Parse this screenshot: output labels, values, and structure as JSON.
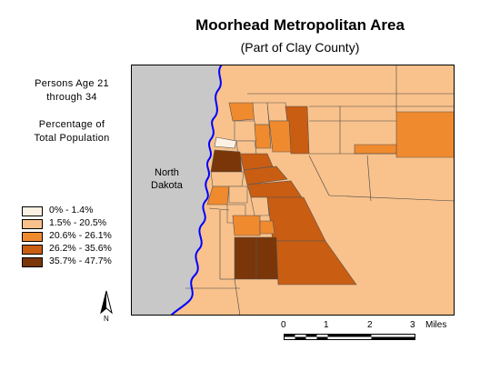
{
  "title": "Moorhead Metropolitan Area",
  "subtitle": "(Part of Clay County)",
  "variable_lines": [
    "Persons Age 21",
    "through 34"
  ],
  "measure_lines": [
    "Percentage of",
    "Total Population"
  ],
  "state_label_lines": [
    "North",
    "Dakota"
  ],
  "north_arrow_label": "N",
  "legend": [
    {
      "label": "0% - 1.4%",
      "color": "#fdf1e3"
    },
    {
      "label": "1.5% - 20.5%",
      "color": "#f9c28c"
    },
    {
      "label": "20.6% - 26.1%",
      "color": "#f08a2e"
    },
    {
      "label": "26.2% - 35.6%",
      "color": "#c95d12"
    },
    {
      "label": "35.7% - 47.7%",
      "color": "#7a3608"
    }
  ],
  "scale_bar": {
    "ticks": [
      "0",
      "1",
      "2",
      "3"
    ],
    "unit": "Miles"
  },
  "colors": {
    "river": "#0000ff",
    "north_dakota": "#c8c8c8",
    "background_tract": "#f9c28c"
  }
}
